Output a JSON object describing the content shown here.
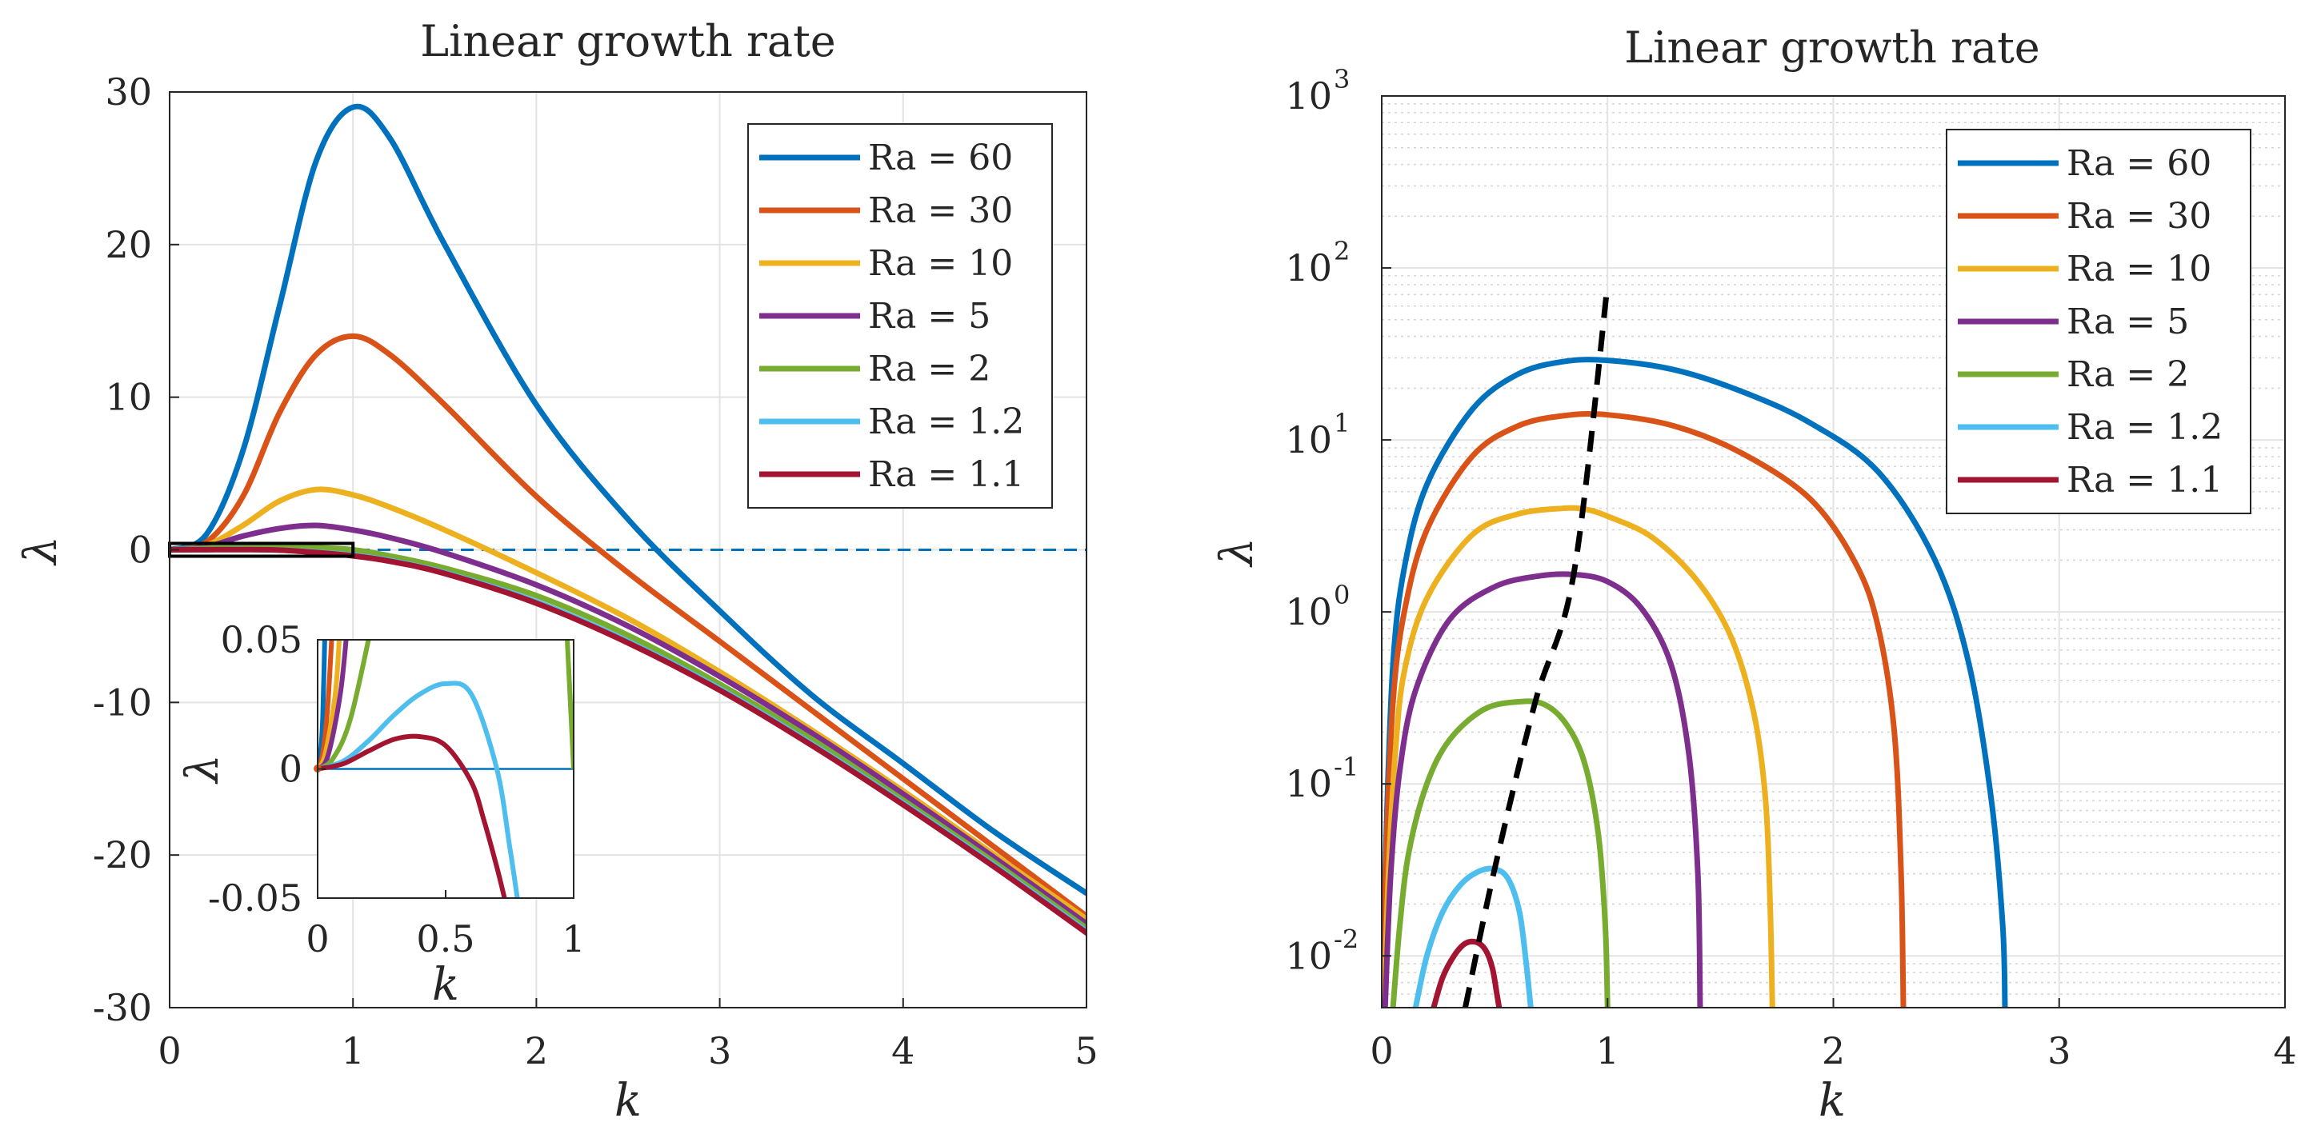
{
  "chart_data": [
    {
      "type": "line",
      "title": "Linear growth rate",
      "xlabel": "k",
      "ylabel": "λ",
      "xlim": [
        0,
        5
      ],
      "ylim": [
        -30,
        30
      ],
      "xticks": [
        0,
        1,
        2,
        3,
        4,
        5
      ],
      "xtick_labels": [
        "0",
        "1",
        "2",
        "3",
        "4",
        "5"
      ],
      "yticks": [
        -30,
        -20,
        -10,
        0,
        10,
        20,
        30
      ],
      "ytick_labels": [
        "-30",
        "-20",
        "-10",
        "0",
        "10",
        "20",
        "30"
      ],
      "grid": true,
      "legend_position": "top-right",
      "reference_line": {
        "y": 0,
        "style": "dashed",
        "color": "#0072BD"
      },
      "zoom_box": {
        "x": [
          0,
          1
        ],
        "y": [
          -0.05,
          0.05
        ]
      },
      "series": [
        {
          "name": "Ra = 60",
          "color": "#0072BD",
          "x": [
            0,
            0.2,
            0.4,
            0.6,
            0.8,
            1.0,
            1.2,
            1.5,
            2.0,
            2.5,
            3.0,
            3.5,
            4.0,
            4.5,
            5.0
          ],
          "values": [
            0,
            1.0,
            6.5,
            16.0,
            25.5,
            29.0,
            27.0,
            20.0,
            9.5,
            2.0,
            -4.0,
            -9.5,
            -14.0,
            -18.5,
            -22.5
          ]
        },
        {
          "name": "Ra = 30",
          "color": "#D95319",
          "x": [
            0,
            0.2,
            0.4,
            0.6,
            0.8,
            1.0,
            1.2,
            1.5,
            2.0,
            2.5,
            3.0,
            3.5,
            4.0,
            4.5,
            5.0
          ],
          "values": [
            0,
            0.5,
            3.5,
            9.0,
            12.8,
            14.0,
            12.8,
            9.5,
            3.5,
            -1.5,
            -6.0,
            -10.5,
            -15.0,
            -19.5,
            -24.0
          ]
        },
        {
          "name": "Ra = 10",
          "color": "#EDB120",
          "x": [
            0,
            0.2,
            0.4,
            0.6,
            0.8,
            1.0,
            1.2,
            1.5,
            2.0,
            2.5,
            3.0,
            3.5,
            4.0,
            4.5,
            5.0
          ],
          "values": [
            0,
            0.3,
            1.6,
            3.2,
            3.95,
            3.6,
            2.8,
            1.3,
            -1.5,
            -4.5,
            -8.0,
            -11.8,
            -15.8,
            -20.0,
            -24.2
          ]
        },
        {
          "name": "Ra = 5",
          "color": "#7E2F8E",
          "x": [
            0,
            0.2,
            0.4,
            0.6,
            0.8,
            1.0,
            1.2,
            1.5,
            2.0,
            2.5,
            3.0,
            3.5,
            4.0,
            4.5,
            5.0
          ],
          "values": [
            0,
            0.2,
            0.9,
            1.4,
            1.6,
            1.3,
            0.8,
            -0.2,
            -2.3,
            -5.0,
            -8.3,
            -12.0,
            -16.0,
            -20.2,
            -24.5
          ]
        },
        {
          "name": "Ra = 2",
          "color": "#77AC30",
          "x": [
            0,
            0.2,
            0.4,
            0.6,
            0.8,
            1.0,
            1.2,
            1.5,
            2.0,
            2.5,
            3.0,
            3.5,
            4.0,
            4.5,
            5.0
          ],
          "values": [
            0,
            0.1,
            0.25,
            0.3,
            0.15,
            0.0,
            -0.4,
            -1.2,
            -3.0,
            -5.6,
            -8.8,
            -12.4,
            -16.4,
            -20.5,
            -24.8
          ]
        },
        {
          "name": "Ra = 1.2",
          "color": "#4DBEEE",
          "x": [
            0,
            0.2,
            0.4,
            0.6,
            0.8,
            1.0,
            1.2,
            1.5,
            2.0,
            2.5,
            3.0,
            3.5,
            4.0,
            4.5,
            5.0
          ],
          "values": [
            0,
            0.02,
            0.03,
            -0.01,
            -0.15,
            -0.35,
            -0.7,
            -1.5,
            -3.4,
            -6.0,
            -9.1,
            -12.7,
            -16.6,
            -20.7,
            -25.0
          ]
        },
        {
          "name": "Ra = 1.1",
          "color": "#A2142F",
          "x": [
            0,
            0.2,
            0.4,
            0.6,
            0.8,
            1.0,
            1.2,
            1.5,
            2.0,
            2.5,
            3.0,
            3.5,
            4.0,
            4.5,
            5.0
          ],
          "values": [
            0,
            0.008,
            0.012,
            -0.02,
            -0.18,
            -0.4,
            -0.75,
            -1.55,
            -3.5,
            -6.1,
            -9.2,
            -12.8,
            -16.7,
            -20.8,
            -25.1
          ]
        }
      ]
    },
    {
      "type": "line",
      "role": "inset",
      "xlabel": "k",
      "ylabel": "λ",
      "xlim": [
        0,
        1
      ],
      "ylim": [
        -0.05,
        0.05
      ],
      "xticks": [
        0,
        0.5,
        1
      ],
      "xtick_labels": [
        "0",
        "0.5",
        "1"
      ],
      "yticks": [
        -0.05,
        0,
        0.05
      ],
      "ytick_labels": [
        "-0.05",
        "0",
        "0.05"
      ],
      "reference_line": {
        "y": 0,
        "style": "solid",
        "color": "#0072BD"
      },
      "series": [
        {
          "name": "Ra = 60",
          "color": "#0072BD",
          "x": [
            0,
            0.01,
            0.02,
            0.03
          ],
          "values": [
            0,
            0.005,
            0.02,
            0.06
          ]
        },
        {
          "name": "Ra = 30",
          "color": "#D95319",
          "x": [
            0,
            0.02,
            0.04,
            0.06
          ],
          "values": [
            0,
            0.006,
            0.025,
            0.06
          ]
        },
        {
          "name": "Ra = 10",
          "color": "#EDB120",
          "x": [
            0,
            0.03,
            0.07,
            0.09
          ],
          "values": [
            0,
            0.006,
            0.03,
            0.06
          ]
        },
        {
          "name": "Ra = 5",
          "color": "#7E2F8E",
          "x": [
            0,
            0.04,
            0.09,
            0.12
          ],
          "values": [
            0,
            0.005,
            0.03,
            0.06
          ]
        },
        {
          "name": "Ra = 2",
          "color": "#77AC30",
          "x": [
            0,
            0.06,
            0.13,
            0.22,
            0.97,
            0.985,
            1.0
          ],
          "values": [
            0,
            0.004,
            0.02,
            0.06,
            0.06,
            0.03,
            0.0
          ]
        },
        {
          "name": "Ra = 1.2",
          "color": "#4DBEEE",
          "x": [
            0,
            0.1,
            0.2,
            0.3,
            0.4,
            0.5,
            0.6,
            0.7,
            0.75,
            0.78
          ],
          "values": [
            0,
            0.003,
            0.011,
            0.021,
            0.029,
            0.033,
            0.029,
            0.0,
            -0.03,
            -0.05
          ]
        },
        {
          "name": "Ra = 1.1",
          "color": "#A2142F",
          "x": [
            0,
            0.1,
            0.2,
            0.3,
            0.4,
            0.5,
            0.6,
            0.65,
            0.7,
            0.73
          ],
          "values": [
            0,
            0.002,
            0.007,
            0.0115,
            0.0125,
            0.009,
            -0.005,
            -0.02,
            -0.038,
            -0.05
          ]
        }
      ]
    },
    {
      "type": "line",
      "title": "Linear growth rate",
      "xlabel": "k",
      "ylabel": "λ",
      "yscale": "log",
      "xlim": [
        0,
        4
      ],
      "ylim": [
        0.005,
        1000
      ],
      "xticks": [
        0,
        1,
        2,
        3,
        4
      ],
      "xtick_labels": [
        "0",
        "1",
        "2",
        "3",
        "4"
      ],
      "yticks": [
        0.01,
        0.1,
        1,
        10,
        100,
        1000
      ],
      "ytick_mantissa": "10",
      "ytick_exponents": [
        "-2",
        "-1",
        "0",
        "1",
        "2",
        "3"
      ],
      "grid": true,
      "minor_grid": true,
      "legend_position": "top-right",
      "series": [
        {
          "name": "Ra = 60",
          "color": "#0072BD",
          "x": [
            0.005,
            0.02,
            0.05,
            0.1,
            0.2,
            0.4,
            0.6,
            0.8,
            1.0,
            1.3,
            1.6,
            1.9,
            2.2,
            2.45,
            2.6,
            2.7,
            2.75,
            2.76
          ],
          "values": [
            0.005,
            0.05,
            0.5,
            1.8,
            5.5,
            15.0,
            24.0,
            28.5,
            29.0,
            25.5,
            19.0,
            12.5,
            6.5,
            2.0,
            0.5,
            0.08,
            0.015,
            0.005
          ]
        },
        {
          "name": "Ra = 30",
          "color": "#D95319",
          "x": [
            0.005,
            0.02,
            0.05,
            0.1,
            0.2,
            0.4,
            0.6,
            0.8,
            1.0,
            1.3,
            1.6,
            1.9,
            2.1,
            2.2,
            2.27,
            2.3,
            2.31
          ],
          "values": [
            0.005,
            0.04,
            0.3,
            1.0,
            3.0,
            8.0,
            12.0,
            13.8,
            14.0,
            12.0,
            8.3,
            4.5,
            1.9,
            0.8,
            0.2,
            0.03,
            0.005
          ]
        },
        {
          "name": "Ra = 10",
          "color": "#EDB120",
          "x": [
            0.01,
            0.03,
            0.06,
            0.1,
            0.2,
            0.4,
            0.6,
            0.8,
            0.9,
            1.0,
            1.2,
            1.4,
            1.55,
            1.65,
            1.7,
            1.72,
            1.73
          ],
          "values": [
            0.005,
            0.03,
            0.15,
            0.45,
            1.2,
            2.8,
            3.7,
            4.0,
            3.95,
            3.6,
            2.7,
            1.5,
            0.7,
            0.25,
            0.08,
            0.02,
            0.005
          ]
        },
        {
          "name": "Ra = 5",
          "color": "#7E2F8E",
          "x": [
            0.015,
            0.04,
            0.08,
            0.15,
            0.3,
            0.5,
            0.7,
            0.85,
            1.0,
            1.15,
            1.28,
            1.36,
            1.4,
            1.41
          ],
          "values": [
            0.005,
            0.03,
            0.12,
            0.35,
            0.9,
            1.4,
            1.62,
            1.65,
            1.5,
            1.05,
            0.5,
            0.15,
            0.03,
            0.005
          ]
        },
        {
          "name": "Ra = 2",
          "color": "#77AC30",
          "x": [
            0.05,
            0.08,
            0.12,
            0.2,
            0.3,
            0.45,
            0.6,
            0.72,
            0.82,
            0.9,
            0.96,
            0.99,
            1.0
          ],
          "values": [
            0.005,
            0.015,
            0.04,
            0.1,
            0.18,
            0.27,
            0.3,
            0.29,
            0.22,
            0.13,
            0.05,
            0.015,
            0.005
          ]
        },
        {
          "name": "Ra = 1.2",
          "color": "#4DBEEE",
          "x": [
            0.15,
            0.2,
            0.27,
            0.35,
            0.43,
            0.5,
            0.56,
            0.61,
            0.64,
            0.66
          ],
          "values": [
            0.005,
            0.01,
            0.018,
            0.026,
            0.031,
            0.032,
            0.028,
            0.018,
            0.009,
            0.005
          ]
        },
        {
          "name": "Ra = 1.1",
          "color": "#A2142F",
          "x": [
            0.23,
            0.27,
            0.32,
            0.37,
            0.42,
            0.46,
            0.49,
            0.51,
            0.52
          ],
          "values": [
            0.005,
            0.0075,
            0.01,
            0.0118,
            0.012,
            0.0108,
            0.0085,
            0.006,
            0.005
          ]
        }
      ],
      "trend_line": {
        "style": "dashed",
        "color": "#000000",
        "x": [
          0.37,
          0.5,
          0.68,
          0.85,
          1.0
        ],
        "values": [
          0.005,
          0.032,
          0.3,
          1.65,
          80
        ]
      }
    }
  ]
}
